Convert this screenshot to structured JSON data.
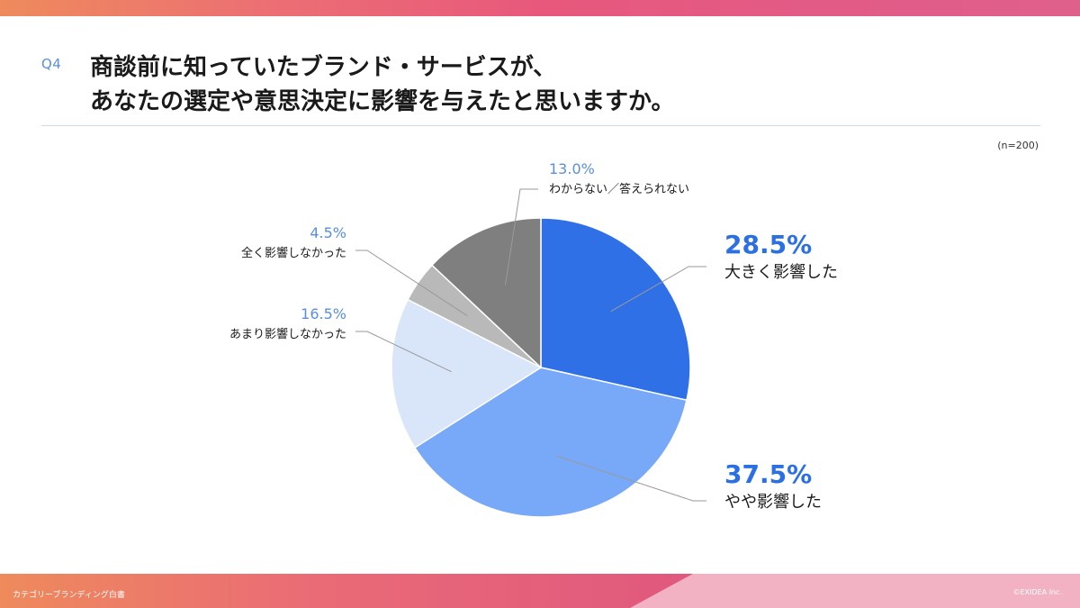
{
  "header": {
    "question_number": "Q4",
    "title_line1": "商談前に知っていたブランド・サービスが、",
    "title_line2": "あなたの選定や意思決定に影響を与えたと思いますか。",
    "sample_size": "(n=200)"
  },
  "colors": {
    "slice_1": "#2f70e6",
    "slice_2": "#78a8f8",
    "slice_3": "#d9e5f9",
    "slice_4": "#b9b9b9",
    "slice_5": "#7f7f7f"
  },
  "chart_data": {
    "type": "pie",
    "start": "12 o'clock, clockwise",
    "slices": [
      {
        "category": "大きく影響した",
        "value": 28.5,
        "label": "28.5%"
      },
      {
        "category": "やや影響した",
        "value": 37.5,
        "label": "37.5%"
      },
      {
        "category": "あまり影響しなかった",
        "value": 16.5,
        "label": "16.5%"
      },
      {
        "category": "全く影響しなかった",
        "value": 4.5,
        "label": "4.5%"
      },
      {
        "category": "わからない／答えられない",
        "value": 13.0,
        "label": "13.0%"
      }
    ]
  },
  "footer": {
    "left_text": "カテゴリーブランディング白書",
    "right_text": "©EXIDEA Inc."
  }
}
